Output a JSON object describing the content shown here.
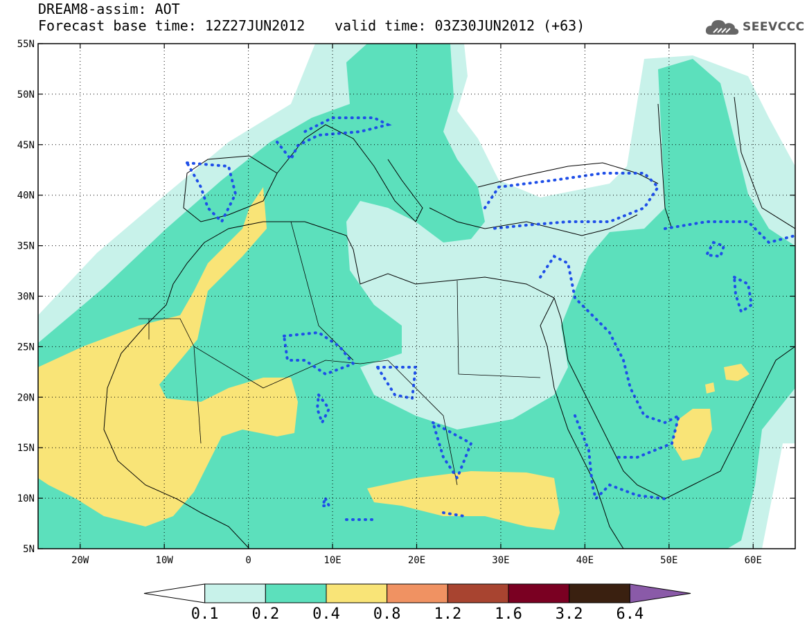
{
  "header": {
    "title": "DREAM8-assim: AOT",
    "forecast_base": "Forecast base time: 12Z27JUN2012",
    "valid_time": "valid time: 03Z30JUN2012 (+63)"
  },
  "logo": {
    "text": "SEEVCCC",
    "icon": "cloud-icon"
  },
  "map": {
    "lat_labels": [
      "55N",
      "50N",
      "45N",
      "40N",
      "35N",
      "30N",
      "25N",
      "20N",
      "15N",
      "10N",
      "5N"
    ],
    "lat_values": [
      55,
      50,
      45,
      40,
      35,
      30,
      25,
      20,
      15,
      10,
      5
    ],
    "lon_labels": [
      "20W",
      "10W",
      "0",
      "10E",
      "20E",
      "30E",
      "40E",
      "50E",
      "60E"
    ],
    "lon_values": [
      -20,
      -10,
      0,
      10,
      20,
      30,
      40,
      50,
      60
    ],
    "extent": {
      "lon_min": -25,
      "lon_max": 65,
      "lat_min": 5,
      "lat_max": 55
    },
    "gridlines": "dotted",
    "contour_line_color": "#1e4ee8"
  },
  "legend": {
    "labels": [
      "0.1",
      "0.2",
      "0.4",
      "0.8",
      "1.2",
      "1.6",
      "3.2",
      "6.4"
    ],
    "colors": [
      "#ffffff",
      "#c8f2ea",
      "#5ce0bc",
      "#f9e477",
      "#f09262",
      "#a84430",
      "#7a0022",
      "#3a2010",
      "#8a5aa8"
    ]
  }
}
